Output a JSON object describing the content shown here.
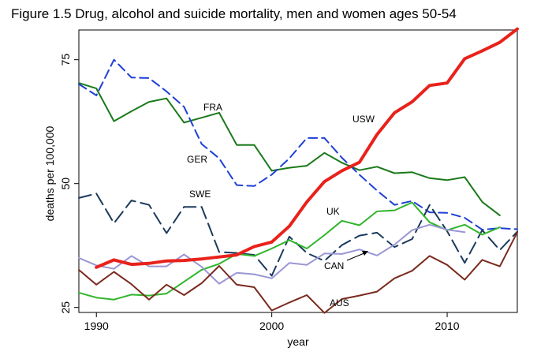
{
  "figure_title": "Figure 1.5  Drug, alcohol and suicide mortality, men and women ages 50-54",
  "chart_data": {
    "type": "line",
    "xlabel": "year",
    "ylabel": "deaths per 100,000",
    "xlim": [
      1989,
      2014
    ],
    "ylim": [
      24,
      81
    ],
    "x_ticks": [
      1990,
      2000,
      2010
    ],
    "y_ticks": [
      25,
      50,
      75
    ],
    "grid": false,
    "legend": "none (direct labels)",
    "annotation": {
      "text": "CAN",
      "arrow_to_series": "CAN"
    },
    "series": [
      {
        "name": "USW",
        "color": "#e8221b",
        "style": "solid-thick",
        "x": [
          1990,
          1991,
          1992,
          1993,
          1994,
          1995,
          1996,
          1997,
          1998,
          1999,
          2000,
          2001,
          2002,
          2003,
          2004,
          2005,
          2006,
          2007,
          2008,
          2009,
          2010,
          2011,
          2012,
          2013,
          2014
        ],
        "y": [
          33.1,
          34.6,
          33.7,
          33.9,
          34.4,
          34.5,
          34.8,
          35.2,
          35.6,
          37.3,
          38.2,
          41.4,
          46.3,
          50.4,
          52.6,
          54.3,
          59.9,
          64.3,
          66.5,
          69.8,
          70.3,
          75.2,
          76.8,
          78.5,
          81.2
        ]
      },
      {
        "name": "FRA",
        "color": "#1a7a1a",
        "style": "solid",
        "x": [
          1989,
          1990,
          1991,
          1992,
          1993,
          1994,
          1995,
          1996,
          1997,
          1998,
          1999,
          2000,
          2001,
          2002,
          2003,
          2004,
          2005,
          2006,
          2007,
          2008,
          2009,
          2010,
          2011,
          2012,
          2013
        ],
        "y": [
          70.3,
          69.2,
          62.6,
          64.6,
          66.5,
          67.2,
          62.3,
          63.3,
          64.3,
          57.8,
          57.8,
          52.6,
          53.2,
          53.6,
          56.2,
          54.2,
          52.7,
          53.4,
          52.1,
          52.3,
          51.1,
          50.7,
          51.3,
          46.3,
          43.6
        ]
      },
      {
        "name": "GER",
        "color": "#1f3fd6",
        "style": "dashed",
        "x": [
          1989,
          1990,
          1991,
          1992,
          1993,
          1994,
          1995,
          1996,
          1997,
          1998,
          1999,
          2000,
          2001,
          2002,
          2003,
          2004,
          2005,
          2006,
          2007,
          2008,
          2009,
          2010,
          2011,
          2012,
          2013,
          2014
        ],
        "y": [
          70.1,
          67.8,
          75.0,
          71.4,
          71.3,
          68.6,
          65.5,
          58.0,
          55.1,
          49.7,
          49.5,
          51.8,
          55.1,
          59.2,
          59.2,
          55.2,
          51.8,
          48.6,
          45.7,
          46.5,
          44.2,
          44.1,
          43.1,
          40.7,
          41.0,
          40.8
        ]
      },
      {
        "name": "SWE",
        "color": "#1b3a5c",
        "style": "longdash",
        "x": [
          1989,
          1990,
          1991,
          1992,
          1993,
          1994,
          1995,
          1996,
          1997,
          1998,
          1999,
          2000,
          2001,
          2002,
          2003,
          2004,
          2005,
          2006,
          2007,
          2008,
          2009,
          2010,
          2011,
          2012,
          2013,
          2014
        ],
        "y": [
          47.1,
          48.0,
          42.0,
          46.6,
          45.7,
          40.0,
          45.3,
          45.3,
          36.2,
          36.0,
          35.6,
          31.4,
          39.3,
          36.0,
          34.4,
          37.6,
          39.5,
          40.1,
          37.2,
          38.8,
          45.7,
          40.4,
          34.0,
          40.6,
          36.6,
          40.3
        ]
      },
      {
        "name": "UK",
        "color": "#2fb52a",
        "style": "solid",
        "x": [
          1989,
          1990,
          1991,
          1992,
          1993,
          1994,
          1995,
          1996,
          1997,
          1998,
          1999,
          2000,
          2001,
          2002,
          2003,
          2004,
          2005,
          2006,
          2007,
          2008,
          2009,
          2010,
          2011,
          2012,
          2013
        ],
        "y": [
          28.0,
          27.0,
          26.6,
          27.6,
          27.4,
          27.8,
          30.2,
          32.6,
          33.8,
          35.8,
          35.4,
          36.9,
          38.6,
          36.9,
          39.6,
          42.5,
          41.6,
          44.4,
          44.6,
          46.2,
          42.2,
          40.6,
          41.7,
          39.7,
          41.2
        ]
      },
      {
        "name": "CAN",
        "color": "#9a96d4",
        "style": "solid",
        "x": [
          1989,
          1990,
          1991,
          1992,
          1993,
          1994,
          1995,
          1996,
          1997,
          1998,
          1999,
          2000,
          2001,
          2002,
          2003,
          2004,
          2005,
          2006,
          2007,
          2008,
          2009,
          2010,
          2011
        ],
        "y": [
          35.0,
          33.5,
          32.8,
          35.4,
          33.3,
          33.3,
          35.7,
          33.2,
          29.8,
          32.0,
          31.7,
          30.9,
          34.0,
          33.6,
          35.9,
          35.8,
          36.7,
          35.5,
          37.7,
          40.6,
          41.7,
          40.7,
          40.2
        ]
      },
      {
        "name": "AUS",
        "color": "#7a2a1e",
        "style": "solid",
        "x": [
          1989,
          1990,
          1991,
          1992,
          1993,
          1994,
          1995,
          1996,
          1997,
          1998,
          1999,
          2000,
          2001,
          2002,
          2003,
          2004,
          2005,
          2006,
          2007,
          2008,
          2009,
          2010,
          2011,
          2012,
          2013,
          2014
        ],
        "y": [
          32.6,
          29.6,
          32.2,
          29.7,
          26.6,
          29.6,
          27.5,
          29.9,
          33.4,
          29.6,
          29.1,
          24.4,
          26.0,
          27.5,
          23.9,
          26.7,
          27.4,
          28.2,
          30.9,
          32.4,
          35.4,
          33.6,
          30.6,
          34.6,
          33.3,
          40.2
        ]
      }
    ]
  }
}
